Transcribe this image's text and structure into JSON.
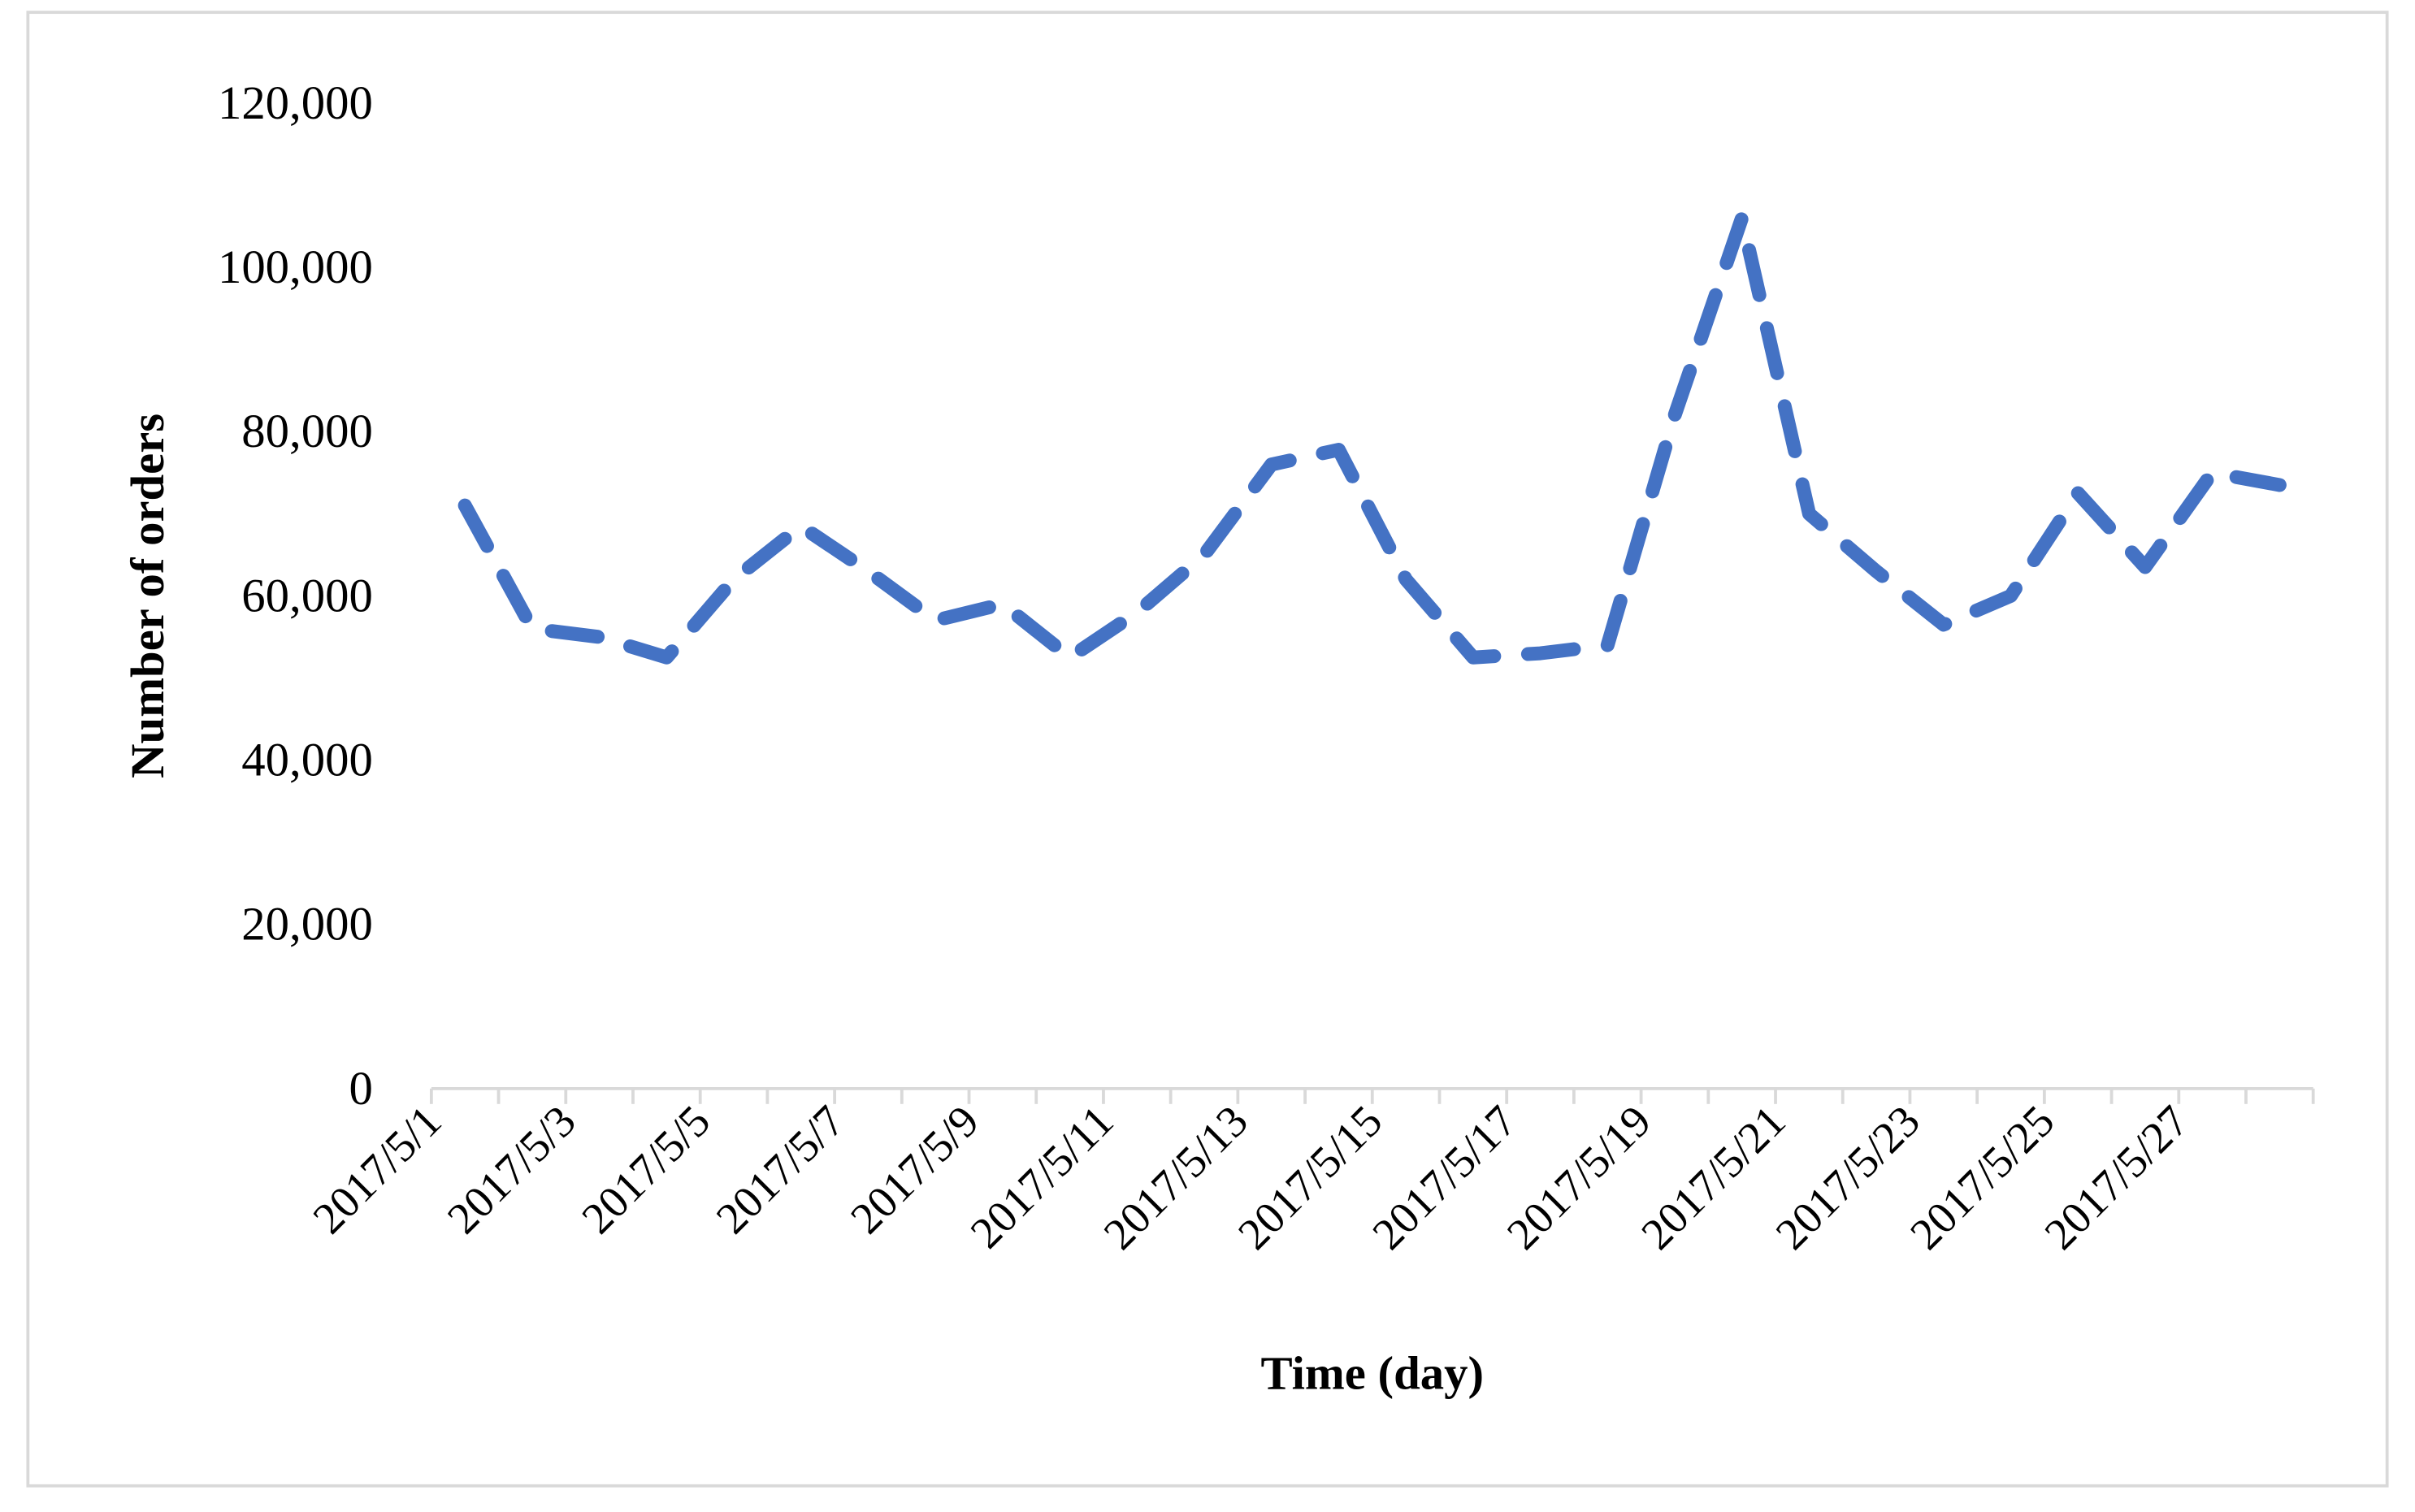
{
  "chart_data": {
    "type": "line",
    "title": "",
    "xlabel": "Time (day)",
    "ylabel": "Number of orders",
    "ylim": [
      0,
      120000
    ],
    "yticks": [
      "0",
      "20,000",
      "40,000",
      "60,000",
      "80,000",
      "100,000",
      "120,000"
    ],
    "ytick_values": [
      0,
      20000,
      40000,
      60000,
      80000,
      100000,
      120000
    ],
    "x": [
      "2017/5/1",
      "2017/5/2",
      "2017/5/3",
      "2017/5/4",
      "2017/5/5",
      "2017/5/6",
      "2017/5/7",
      "2017/5/8",
      "2017/5/9",
      "2017/5/10",
      "2017/5/11",
      "2017/5/12",
      "2017/5/13",
      "2017/5/14",
      "2017/5/15",
      "2017/5/16",
      "2017/5/17",
      "2017/5/18",
      "2017/5/19",
      "2017/5/20",
      "2017/5/21",
      "2017/5/22",
      "2017/5/23",
      "2017/5/24",
      "2017/5/25",
      "2017/5/26",
      "2017/5/27",
      "2017/5/28"
    ],
    "xtick_labels": [
      "2017/5/1",
      "2017/5/3",
      "2017/5/5",
      "2017/5/7",
      "2017/5/9",
      "2017/5/11",
      "2017/5/13",
      "2017/5/15",
      "2017/5/17",
      "2017/5/19",
      "2017/5/21",
      "2017/5/23",
      "2017/5/25",
      "2017/5/27"
    ],
    "series": [
      {
        "values": [
          71000,
          56000,
          55000,
          52500,
          62000,
          68500,
          63000,
          57000,
          59000,
          52500,
          58000,
          65000,
          76000,
          77800,
          62000,
          52500,
          53000,
          54000,
          82000,
          106000,
          70000,
          63000,
          56500,
          60000,
          72500,
          63500,
          75000,
          73500
        ],
        "color": "#4472C4",
        "line_style": "dashed"
      }
    ],
    "grid": false,
    "legend": "none"
  }
}
